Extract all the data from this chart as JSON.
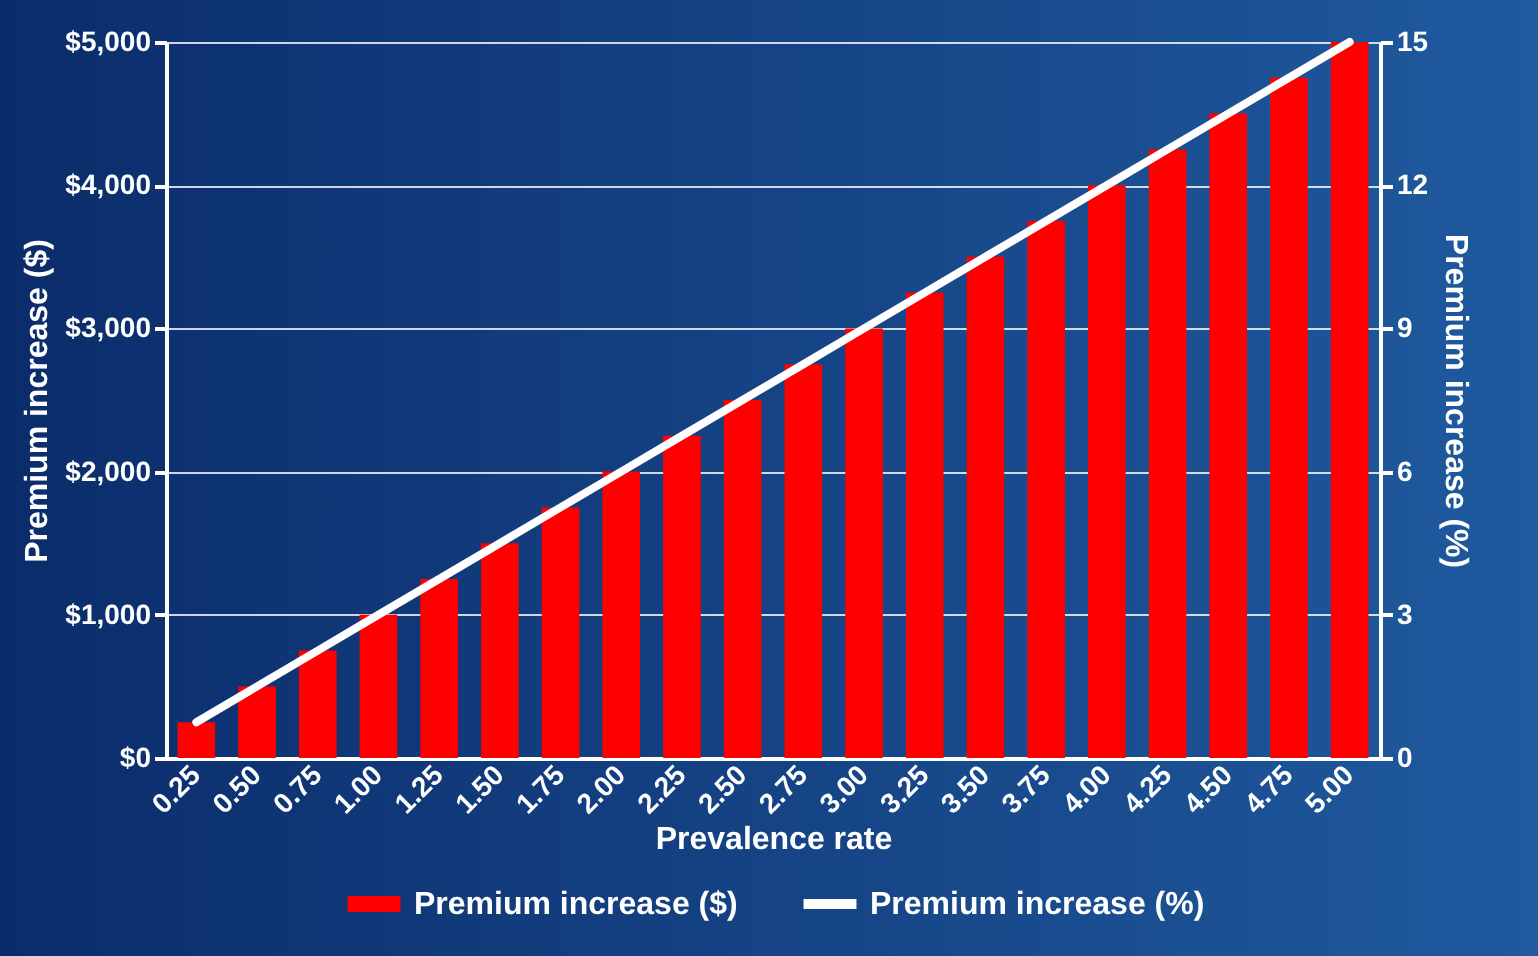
{
  "chart_data": {
    "type": "bar",
    "xlabel": "Prevalence rate",
    "ylabel": "Premium increase ($)",
    "y2label": "Premium increase (%)",
    "categories": [
      "0.25",
      "0.50",
      "0.75",
      "1.00",
      "1.25",
      "1.50",
      "1.75",
      "2.00",
      "2.25",
      "2.50",
      "2.75",
      "3.00",
      "3.25",
      "3.50",
      "3.75",
      "4.00",
      "4.25",
      "4.50",
      "4.75",
      "5.00"
    ],
    "series": [
      {
        "name": "Premium increase ($)",
        "color": "#ff0000",
        "values": [
          250,
          500,
          750,
          1000,
          1250,
          1500,
          1750,
          2000,
          2250,
          2500,
          2750,
          3000,
          3250,
          3500,
          3750,
          4000,
          4250,
          4500,
          4750,
          5000
        ]
      },
      {
        "name": "Premium increase (%)",
        "type": "line",
        "axis": "y2",
        "color": "#ffffff",
        "values": [
          0.75,
          1.5,
          2.25,
          3,
          3.75,
          4.5,
          5.25,
          6,
          6.75,
          7.5,
          8.25,
          9,
          9.75,
          10.5,
          11.25,
          12,
          12.75,
          13.5,
          14.25,
          15
        ]
      }
    ],
    "ylim": [
      0,
      5000
    ],
    "yticks": [
      {
        "value": 0,
        "label": "$0"
      },
      {
        "value": 1000,
        "label": "$1,000"
      },
      {
        "value": 2000,
        "label": "$2,000"
      },
      {
        "value": 3000,
        "label": "$3,000"
      },
      {
        "value": 4000,
        "label": "$4,000"
      },
      {
        "value": 5000,
        "label": "$5,000"
      }
    ],
    "y2lim": [
      0,
      15
    ],
    "y2ticks": [
      0,
      3,
      6,
      9,
      12,
      15
    ],
    "grid": "y",
    "legend": "bottom",
    "marker": "none",
    "line_style": "solid"
  }
}
